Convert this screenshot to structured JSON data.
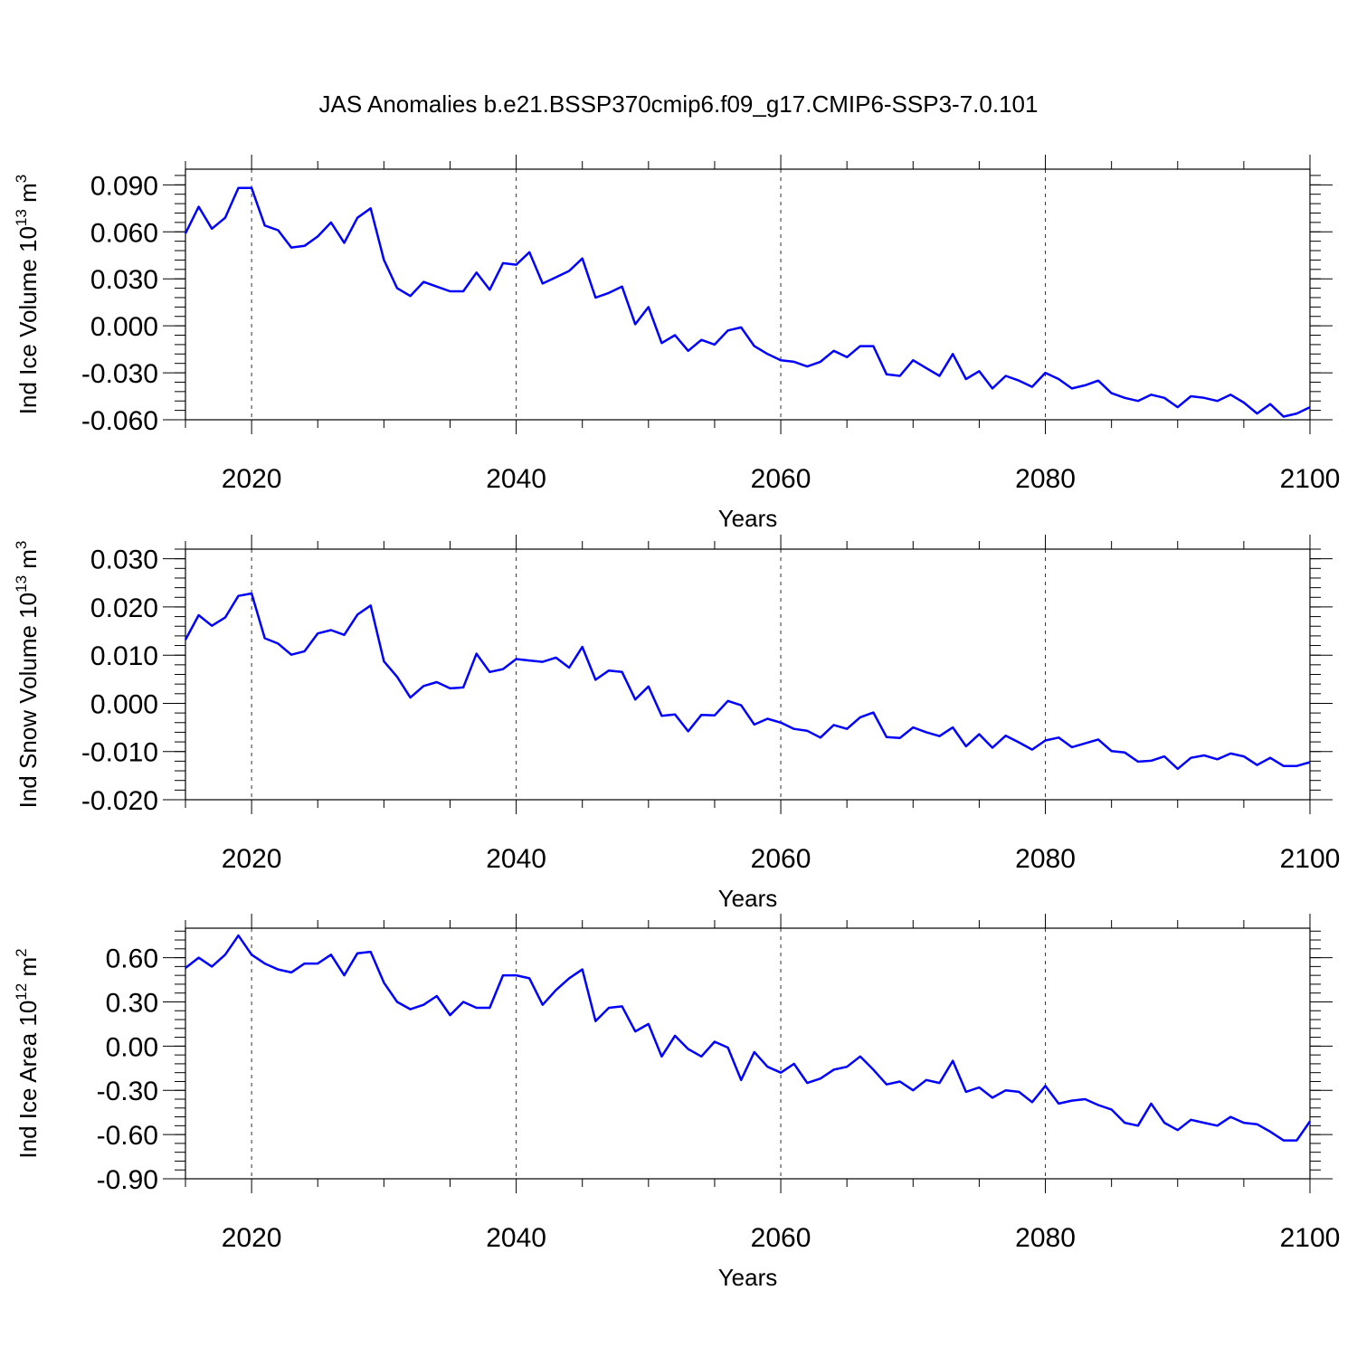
{
  "title": "JAS Anomalies b.e21.BSSP370cmip6.f09_g17.CMIP6-SSP3-7.0.101",
  "colors": {
    "series": "#0000ff",
    "axis": "#000000",
    "grid": "#000000"
  },
  "chart_data": [
    {
      "type": "line",
      "ylabel": {
        "text": "Ind Ice Volume 10",
        "exp": "13",
        "unit": " m",
        "unit_exp": "3"
      },
      "xlabel": "Years",
      "xlim": [
        2015,
        2100
      ],
      "ylim": [
        -0.06,
        0.1
      ],
      "yticks": [
        -0.06,
        -0.03,
        0.0,
        0.03,
        0.06,
        0.09
      ],
      "ytick_labels": [
        "-0.060",
        "-0.030",
        "0.000",
        "0.030",
        "0.060",
        "0.090"
      ],
      "xticks": [
        2020,
        2040,
        2060,
        2080,
        2100
      ],
      "xtick_labels": [
        "2020",
        "2040",
        "2060",
        "2080",
        "2100"
      ],
      "grid_x": [
        2020,
        2040,
        2060,
        2080
      ],
      "x_start": 2015,
      "values": [
        0.059,
        0.076,
        0.062,
        0.069,
        0.088,
        0.088,
        0.064,
        0.061,
        0.05,
        0.051,
        0.057,
        0.066,
        0.053,
        0.069,
        0.075,
        0.042,
        0.024,
        0.019,
        0.028,
        0.025,
        0.022,
        0.022,
        0.034,
        0.023,
        0.04,
        0.039,
        0.047,
        0.027,
        0.031,
        0.035,
        0.043,
        0.018,
        0.021,
        0.025,
        0.001,
        0.012,
        -0.011,
        -0.006,
        -0.016,
        -0.009,
        -0.012,
        -0.003,
        -0.001,
        -0.013,
        -0.018,
        -0.022,
        -0.023,
        -0.026,
        -0.023,
        -0.016,
        -0.02,
        -0.013,
        -0.013,
        -0.031,
        -0.032,
        -0.022,
        -0.027,
        -0.032,
        -0.018,
        -0.034,
        -0.029,
        -0.04,
        -0.032,
        -0.035,
        -0.039,
        -0.03,
        -0.034,
        -0.04,
        -0.038,
        -0.035,
        -0.043,
        -0.046,
        -0.048,
        -0.044,
        -0.046,
        -0.052,
        -0.045,
        -0.046,
        -0.048,
        -0.044,
        -0.049,
        -0.056,
        -0.05,
        -0.058,
        -0.056,
        -0.052
      ]
    },
    {
      "type": "line",
      "ylabel": {
        "text": "Ind Snow Volume 10",
        "exp": "13",
        "unit": " m",
        "unit_exp": "3"
      },
      "xlabel": "Years",
      "xlim": [
        2015,
        2100
      ],
      "ylim": [
        -0.02,
        0.032
      ],
      "yticks": [
        -0.02,
        -0.01,
        0.0,
        0.01,
        0.02,
        0.03
      ],
      "ytick_labels": [
        "-0.020",
        "-0.010",
        "0.000",
        "0.010",
        "0.020",
        "0.030"
      ],
      "xticks": [
        2020,
        2040,
        2060,
        2080,
        2100
      ],
      "xtick_labels": [
        "2020",
        "2040",
        "2060",
        "2080",
        "2100"
      ],
      "grid_x": [
        2020,
        2040,
        2060,
        2080
      ],
      "x_start": 2015,
      "values": [
        0.0132,
        0.0183,
        0.0161,
        0.0178,
        0.0223,
        0.0228,
        0.0135,
        0.0124,
        0.0101,
        0.0108,
        0.0145,
        0.0152,
        0.0142,
        0.0184,
        0.0203,
        0.0087,
        0.0055,
        0.0012,
        0.0036,
        0.0044,
        0.0031,
        0.0033,
        0.0103,
        0.0065,
        0.0071,
        0.0092,
        0.0089,
        0.0086,
        0.0095,
        0.0074,
        0.0117,
        0.0049,
        0.0068,
        0.0065,
        0.0008,
        0.0035,
        -0.0026,
        -0.0023,
        -0.0058,
        -0.0024,
        -0.0025,
        0.0005,
        -0.0004,
        -0.0044,
        -0.0032,
        -0.004,
        -0.0053,
        -0.0057,
        -0.0071,
        -0.0045,
        -0.0053,
        -0.0029,
        -0.0019,
        -0.007,
        -0.0072,
        -0.005,
        -0.006,
        -0.0068,
        -0.005,
        -0.0089,
        -0.0064,
        -0.0092,
        -0.0067,
        -0.0081,
        -0.0096,
        -0.0077,
        -0.0071,
        -0.0091,
        -0.0083,
        -0.0075,
        -0.0099,
        -0.0102,
        -0.0121,
        -0.0119,
        -0.011,
        -0.0136,
        -0.0113,
        -0.0108,
        -0.0116,
        -0.0104,
        -0.011,
        -0.0128,
        -0.0113,
        -0.013,
        -0.013,
        -0.0122
      ]
    },
    {
      "type": "line",
      "ylabel": {
        "text": "Ind Ice Area 10",
        "exp": "12",
        "unit": " m",
        "unit_exp": "2"
      },
      "xlabel": "Years",
      "xlim": [
        2015,
        2100
      ],
      "ylim": [
        -0.9,
        0.8
      ],
      "yticks": [
        -0.9,
        -0.6,
        -0.3,
        0.0,
        0.3,
        0.6
      ],
      "ytick_labels": [
        "-0.90",
        "-0.60",
        "-0.30",
        "0.00",
        "0.30",
        "0.60"
      ],
      "xticks": [
        2020,
        2040,
        2060,
        2080,
        2100
      ],
      "xtick_labels": [
        "2020",
        "2040",
        "2060",
        "2080",
        "2100"
      ],
      "grid_x": [
        2020,
        2040,
        2060,
        2080
      ],
      "x_start": 2015,
      "values": [
        0.53,
        0.6,
        0.54,
        0.62,
        0.75,
        0.62,
        0.56,
        0.52,
        0.5,
        0.56,
        0.56,
        0.62,
        0.48,
        0.63,
        0.64,
        0.43,
        0.3,
        0.25,
        0.28,
        0.34,
        0.21,
        0.3,
        0.26,
        0.26,
        0.48,
        0.48,
        0.46,
        0.28,
        0.38,
        0.46,
        0.52,
        0.17,
        0.26,
        0.27,
        0.1,
        0.15,
        -0.07,
        0.07,
        -0.02,
        -0.07,
        0.03,
        -0.01,
        -0.23,
        -0.04,
        -0.14,
        -0.18,
        -0.12,
        -0.25,
        -0.22,
        -0.16,
        -0.14,
        -0.07,
        -0.16,
        -0.26,
        -0.24,
        -0.3,
        -0.23,
        -0.25,
        -0.1,
        -0.31,
        -0.28,
        -0.35,
        -0.3,
        -0.31,
        -0.38,
        -0.27,
        -0.39,
        -0.37,
        -0.36,
        -0.4,
        -0.43,
        -0.52,
        -0.54,
        -0.39,
        -0.52,
        -0.57,
        -0.5,
        -0.52,
        -0.54,
        -0.48,
        -0.52,
        -0.53,
        -0.58,
        -0.64,
        -0.64,
        -0.51
      ]
    }
  ]
}
